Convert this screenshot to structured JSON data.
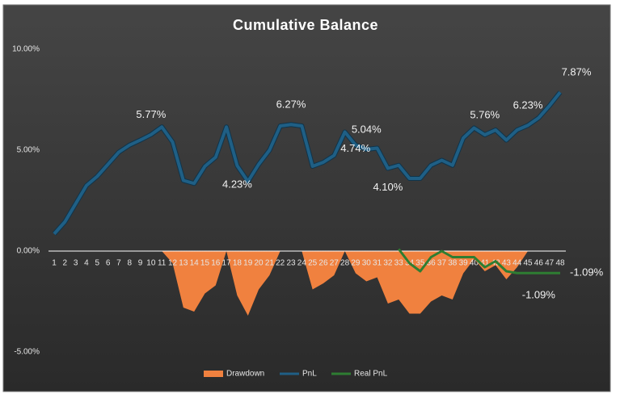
{
  "chart_data": {
    "type": "line",
    "title": "Cumulative Balance",
    "categories": [
      "1",
      "2",
      "3",
      "4",
      "5",
      "6",
      "7",
      "8",
      "9",
      "10",
      "11",
      "12",
      "13",
      "14",
      "15",
      "16",
      "17",
      "18",
      "19",
      "20",
      "21",
      "22",
      "23",
      "24",
      "25",
      "26",
      "27",
      "28",
      "29",
      "30",
      "31",
      "32",
      "33",
      "34",
      "35",
      "36",
      "37",
      "38",
      "39",
      "40",
      "41",
      "42",
      "43",
      "44",
      "45",
      "46",
      "47",
      "48"
    ],
    "series": [
      {
        "name": "Drawdown",
        "type": "area",
        "color": "#f0813f",
        "values": [
          0,
          0,
          0,
          0,
          0,
          0,
          0,
          0,
          0,
          0,
          0,
          -0.6,
          -2.8,
          -3.0,
          -2.1,
          -1.7,
          0,
          -2.2,
          -3.2,
          -1.9,
          -1.2,
          0,
          0,
          0,
          -1.9,
          -1.6,
          -1.2,
          0,
          -1.1,
          -1.5,
          -1.3,
          -2.6,
          -2.4,
          -3.1,
          -3.1,
          -2.5,
          -2.2,
          -2.4,
          -1.1,
          -0.4,
          -1.0,
          -0.7,
          -1.4,
          -0.8,
          0,
          0,
          0,
          0
        ]
      },
      {
        "name": "PnL",
        "type": "line",
        "color": "#1f5f85",
        "values": [
          0.85,
          1.45,
          2.35,
          3.25,
          3.7,
          4.3,
          4.9,
          5.25,
          5.5,
          5.77,
          6.15,
          5.4,
          3.5,
          3.35,
          4.2,
          4.65,
          6.15,
          4.23,
          3.45,
          4.3,
          5.0,
          6.2,
          6.27,
          6.2,
          4.2,
          4.4,
          4.74,
          5.9,
          5.25,
          5.04,
          5.1,
          4.1,
          4.25,
          3.6,
          3.6,
          4.25,
          4.5,
          4.25,
          5.6,
          6.1,
          5.76,
          6.0,
          5.5,
          6.0,
          6.23,
          6.6,
          7.2,
          7.87
        ],
        "value_labels": [
          null,
          null,
          null,
          null,
          null,
          null,
          null,
          null,
          null,
          "5.77%",
          null,
          null,
          null,
          null,
          null,
          null,
          null,
          "4.23%",
          null,
          null,
          null,
          null,
          "6.27%",
          null,
          null,
          null,
          "4.74%",
          null,
          null,
          "5.04%",
          null,
          "4.10%",
          null,
          null,
          null,
          null,
          null,
          null,
          null,
          null,
          "5.76%",
          null,
          null,
          null,
          "6.23%",
          null,
          null,
          "7.87%"
        ]
      },
      {
        "name": "Real PnL",
        "type": "line",
        "color": "#2e7d32",
        "values": [
          null,
          null,
          null,
          null,
          null,
          null,
          null,
          null,
          null,
          null,
          null,
          null,
          null,
          null,
          null,
          null,
          null,
          null,
          null,
          null,
          null,
          null,
          null,
          null,
          null,
          null,
          null,
          null,
          null,
          null,
          null,
          null,
          0.1,
          -0.6,
          -1.0,
          -0.3,
          0,
          -0.3,
          -0.3,
          -0.3,
          -0.8,
          -0.5,
          -1.0,
          -1.09,
          -1.09,
          -1.09,
          -1.09,
          -1.09
        ],
        "value_labels": [
          null,
          null,
          null,
          null,
          null,
          null,
          null,
          null,
          null,
          null,
          null,
          null,
          null,
          null,
          null,
          null,
          null,
          null,
          null,
          null,
          null,
          null,
          null,
          null,
          null,
          null,
          null,
          null,
          null,
          null,
          null,
          null,
          null,
          null,
          null,
          null,
          null,
          null,
          null,
          null,
          null,
          null,
          null,
          null,
          null,
          "-1.09%",
          null,
          "-1.09%"
        ]
      }
    ],
    "ylim": [
      -5,
      10
    ],
    "yticks": [
      {
        "value": -5,
        "label": "-5.00%"
      },
      {
        "value": 0,
        "label": "0.00%"
      },
      {
        "value": 5,
        "label": "5.00%"
      },
      {
        "value": 10,
        "label": "10.00%"
      }
    ],
    "legend": "bottom"
  }
}
